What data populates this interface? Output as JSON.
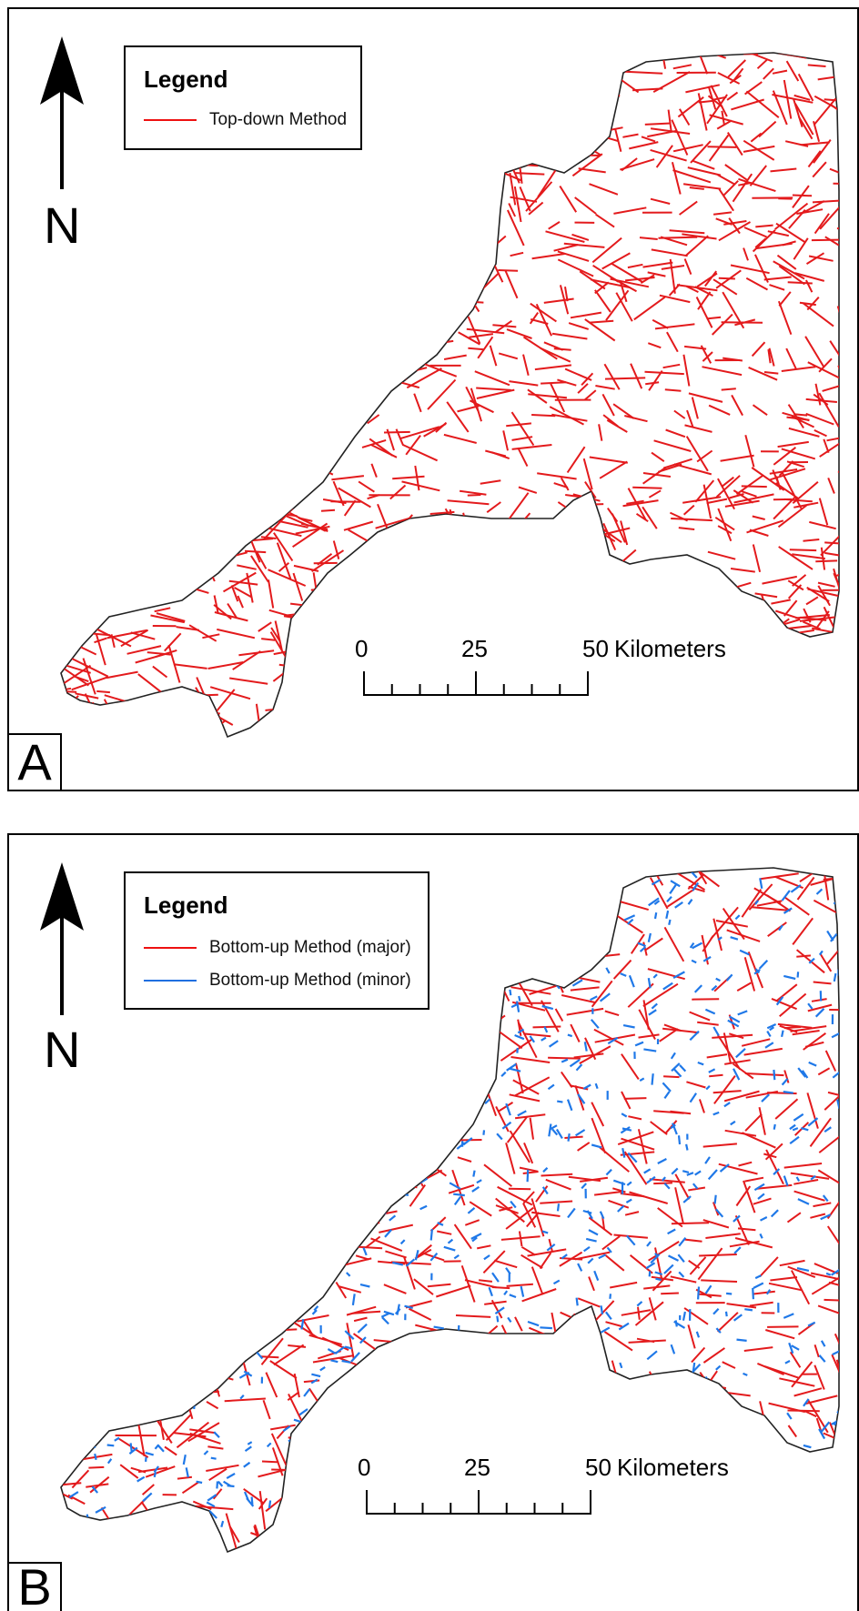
{
  "panels": [
    {
      "letter": "A",
      "legend": {
        "title": "Legend",
        "items": [
          {
            "label": "Top-down Method",
            "color": "#e31a1c"
          }
        ]
      },
      "north": "N",
      "scale": {
        "ticks": [
          "0",
          "25",
          "50"
        ],
        "unit": "Kilometers"
      }
    },
    {
      "letter": "B",
      "legend": {
        "title": "Legend",
        "items": [
          {
            "label": "Bottom-up Method (major)",
            "color": "#e31a1c"
          },
          {
            "label": "Bottom-up Method (minor)",
            "color": "#1f6fe0"
          }
        ]
      },
      "north": "N",
      "scale": {
        "ticks": [
          "0",
          "25",
          "50"
        ],
        "unit": "Kilometers"
      }
    }
  ],
  "colors": {
    "major": "#e31a1c",
    "minor": "#1f78e8",
    "outline": "#222222"
  }
}
